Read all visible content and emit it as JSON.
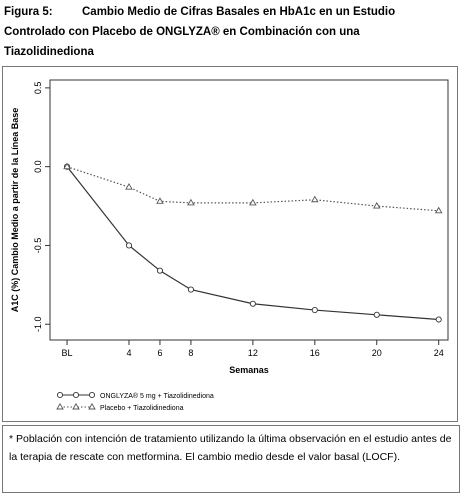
{
  "chart_data": {
    "type": "line",
    "figure_label": "Figura 5:",
    "title_lines": [
      "Cambio Medio de Cifras Basales en HbA1c en un Estudio",
      "Controlado con Placebo de ONGLYZA® en Combinación con una",
      "Tiazolidinediona"
    ],
    "x_label": "Semanas",
    "y_label": "A1C (%) Cambio Medio a partir de la Línea Base",
    "x": [
      0,
      4,
      6,
      8,
      12,
      16,
      20,
      24
    ],
    "xlim": [
      -1.1,
      24.6
    ],
    "xticks": [
      {
        "value": 0,
        "label": "BL"
      },
      4,
      6,
      8,
      12,
      16,
      20,
      24
    ],
    "ylim": [
      -1.1,
      0.55
    ],
    "yticks": [
      0.5,
      {
        "value": 0,
        "label": "0.0"
      },
      -0.5,
      {
        "value": -1,
        "label": "-1.0"
      }
    ],
    "series": [
      {
        "name": "ONGLYZA® 5 mg + Tiazolidinediona",
        "color": "#333333",
        "marker": "circle",
        "dash": "solid",
        "values": [
          0,
          -0.5,
          -0.66,
          -0.78,
          -0.87,
          -0.91,
          -0.94,
          -0.97
        ]
      },
      {
        "name": "Placebo + Tiazolidinediona",
        "color": "#555555",
        "marker": "triangle",
        "dash": "dotted",
        "values": [
          0,
          -0.13,
          -0.22,
          -0.23,
          -0.23,
          -0.21,
          -0.25,
          -0.28
        ]
      }
    ],
    "footnote": "*  Población con intención de tratamiento utilizando la última observación en el estudio antes de la terapia de rescate con metformina.  El cambio medio desde el valor basal (LOCF)."
  }
}
